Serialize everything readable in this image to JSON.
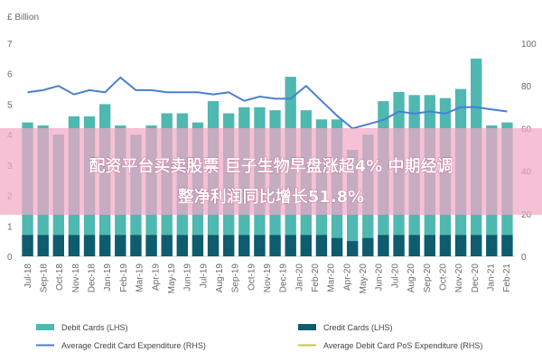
{
  "chart_data": {
    "type": "bar",
    "left_unit": "£ Billion",
    "categories": [
      "Jul-18",
      "Aug-18",
      "Sep-18",
      "Oct-18",
      "Nov-18",
      "Dec-18",
      "Jan-19",
      "Feb-19",
      "Mar-19",
      "Apr-19",
      "May-19",
      "Jun-19",
      "Jul-19",
      "Aug-19",
      "Sep-19",
      "Oct-19",
      "Nov-19",
      "Dec-19",
      "Jan-20",
      "Feb-20",
      "Mar-20",
      "Apr-20",
      "May-20",
      "Jun-20",
      "Jul-20",
      "Aug-20",
      "Sep-20",
      "Oct-20",
      "Nov-20",
      "Dec-20",
      "Jan-21",
      "Feb-21"
    ],
    "x_tick_labels": [
      "Jul-18",
      "Sep-18",
      "Oct-18",
      "Nov-18",
      "Dec-18",
      "Jan-19",
      "Feb-19",
      "Mar-19",
      "Apr-19",
      "May-19",
      "Jun-19",
      "Jul-19",
      "Aug-19",
      "Sep-19",
      "Oct-19",
      "Nov-19",
      "Dec-19",
      "Jan-20",
      "Feb-20",
      "Mar-20",
      "Apr-20",
      "May-20",
      "Jun-20",
      "Jul-20",
      "Aug-20",
      "Sep-20",
      "Oct-20",
      "Nov-20",
      "Dec-20",
      "Jan-21",
      "Feb-21"
    ],
    "y_left": {
      "min": 0,
      "max": 7,
      "ticks": [
        0,
        1,
        2,
        3,
        4,
        5,
        6,
        7
      ]
    },
    "y_right": {
      "min": 0,
      "max": 100,
      "ticks": [
        0,
        20,
        40,
        60,
        80,
        100
      ]
    },
    "series": [
      {
        "name": "Debit Cards (LHS)",
        "kind": "bar",
        "axis": "left",
        "color": "#4fb8b0",
        "values": [
          4.4,
          4.3,
          4.0,
          4.6,
          4.6,
          5.0,
          4.3,
          4.0,
          4.3,
          4.7,
          4.7,
          4.4,
          5.1,
          4.7,
          4.9,
          4.9,
          4.8,
          5.9,
          4.8,
          4.5,
          4.5,
          3.5,
          4.0,
          5.1,
          5.4,
          5.3,
          5.3,
          5.2,
          5.5,
          6.5,
          4.3,
          4.4
        ]
      },
      {
        "name": "Credit Cards (LHS)",
        "kind": "bar",
        "axis": "left",
        "color": "#0e5c6e",
        "values": [
          0.7,
          0.7,
          0.7,
          0.7,
          0.7,
          0.7,
          0.7,
          0.7,
          0.7,
          0.7,
          0.7,
          0.7,
          0.7,
          0.7,
          0.7,
          0.7,
          0.7,
          0.7,
          0.7,
          0.7,
          0.6,
          0.5,
          0.6,
          0.7,
          0.7,
          0.7,
          0.7,
          0.7,
          0.7,
          0.7,
          0.7,
          0.7
        ]
      },
      {
        "name": "Average Credit Card Expenditure (RHS)",
        "kind": "line",
        "axis": "right",
        "color": "#4a7fd4",
        "values": [
          77,
          78,
          80,
          76,
          78,
          77,
          84,
          78,
          78,
          77,
          77,
          77,
          76,
          77,
          73,
          75,
          74,
          74,
          80,
          73,
          66,
          60,
          62,
          64,
          68,
          67,
          68,
          67,
          70,
          70,
          69,
          68
        ]
      },
      {
        "name": "Average Debit Card PoS Expenditure (RHS)",
        "kind": "line",
        "axis": "right",
        "color": "#c9c34a",
        "values": [
          null,
          null,
          null,
          null,
          null,
          null,
          null,
          null,
          null,
          null,
          null,
          null,
          null,
          null,
          null,
          null,
          null,
          null,
          null,
          null,
          null,
          null,
          null,
          null,
          null,
          null,
          null,
          null,
          null,
          null,
          null,
          null
        ]
      }
    ],
    "legend": {
      "placement": "bottom"
    },
    "grid": false
  },
  "overlay": {
    "banner_color": "#f2a7c6",
    "line1": "配资平台买卖股票 巨子生物早盘涨超4% 中期经调",
    "line2": "整净利润同比增长51.8%"
  }
}
